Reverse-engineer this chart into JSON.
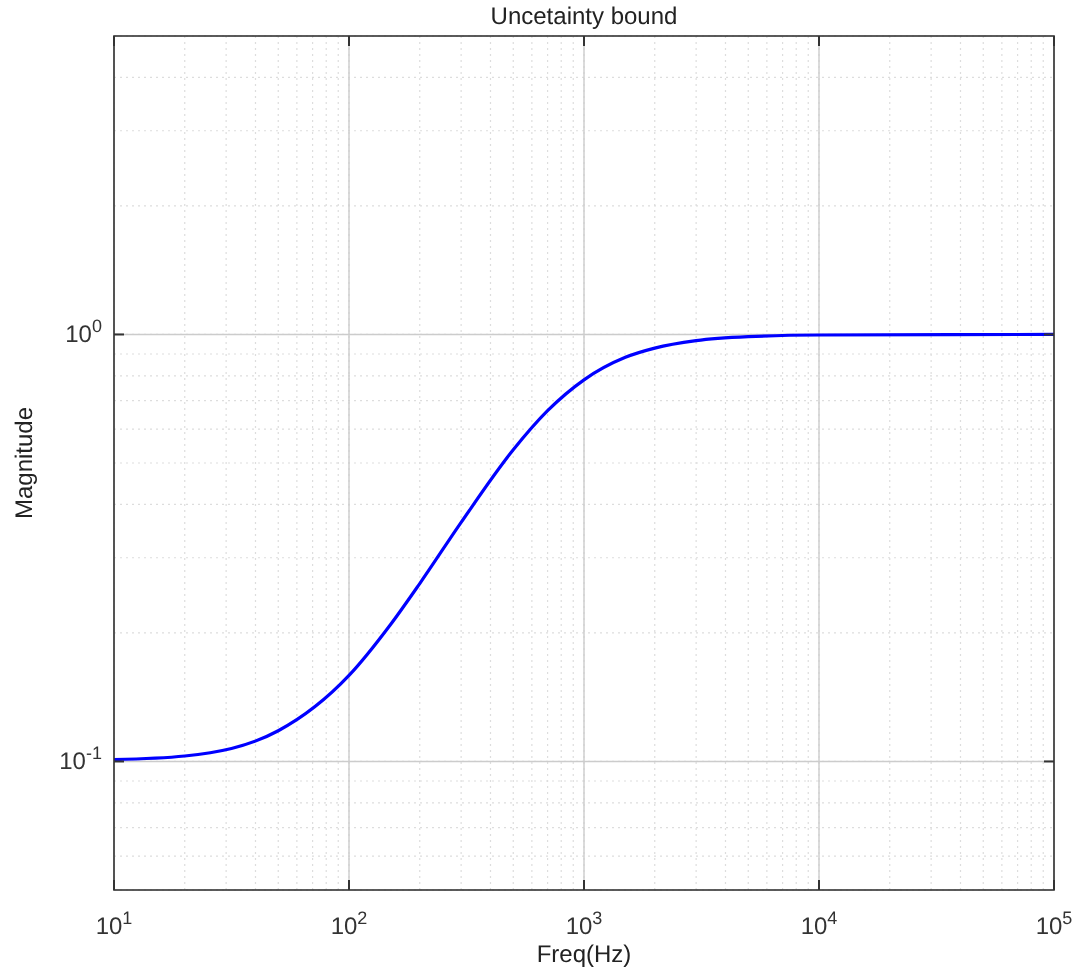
{
  "chart_data": {
    "type": "line",
    "title": "Uncetainty bound",
    "xlabel": "Freq(Hz)",
    "ylabel": "Magnitude",
    "log": "xy",
    "grid": true,
    "marker": "none",
    "line_style": "solid",
    "xlim": [
      10,
      100000
    ],
    "ylim": [
      0.05,
      5
    ],
    "xticks": [
      {
        "value": 10,
        "label": "10$^{1}$"
      },
      {
        "value": 100,
        "label": "10$^{2}$"
      },
      {
        "value": 1000,
        "label": "10$^{3}$"
      },
      {
        "value": 10000,
        "label": "10$^{4}$"
      },
      {
        "value": 100000,
        "label": "10$^{5}$"
      }
    ],
    "yticks": [
      {
        "value": 0.1,
        "label": "10$^{-1}$"
      },
      {
        "value": 1,
        "label": "10$^{0}$"
      }
    ],
    "x": [
      10,
      20,
      50,
      100,
      150,
      200,
      300,
      500,
      700,
      1000,
      1500,
      2000,
      3000,
      5000,
      10000,
      100000
    ],
    "series": [
      {
        "color": "#0000ff",
        "values": [
          0.101,
          0.103,
          0.118,
          0.159,
          0.209,
          0.261,
          0.363,
          0.537,
          0.663,
          0.783,
          0.884,
          0.929,
          0.967,
          0.988,
          0.997,
          1.0
        ]
      }
    ]
  }
}
